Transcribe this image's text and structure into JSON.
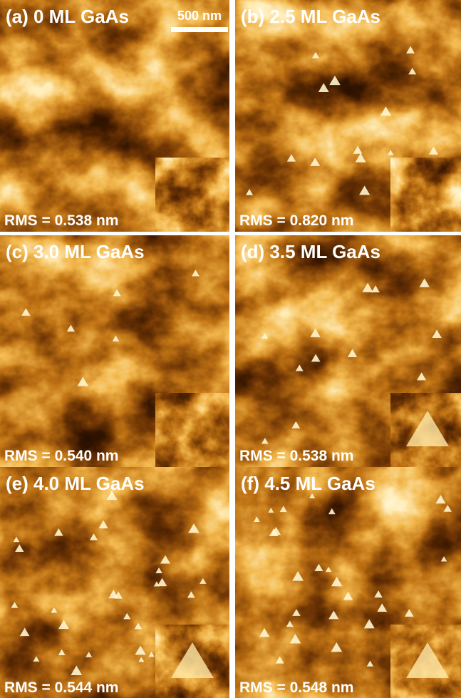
{
  "panels": [
    {
      "label": "(a) 0 ML GaAs",
      "rms": "RMS = 0.538 nm"
    },
    {
      "label": "(b) 2.5 ML GaAs",
      "rms": "RMS = 0.820 nm"
    },
    {
      "label": "(c) 3.0 ML GaAs",
      "rms": "RMS = 0.540 nm"
    },
    {
      "label": "(d) 3.5 ML GaAs",
      "rms": "RMS = 0.538 nm"
    },
    {
      "label": "(e) 4.0 ML GaAs",
      "rms": "RMS = 0.544 nm"
    },
    {
      "label": "(f) 4.5 ML GaAs",
      "rms": "RMS = 0.548 nm"
    }
  ],
  "scale_bar": "500 nm"
}
